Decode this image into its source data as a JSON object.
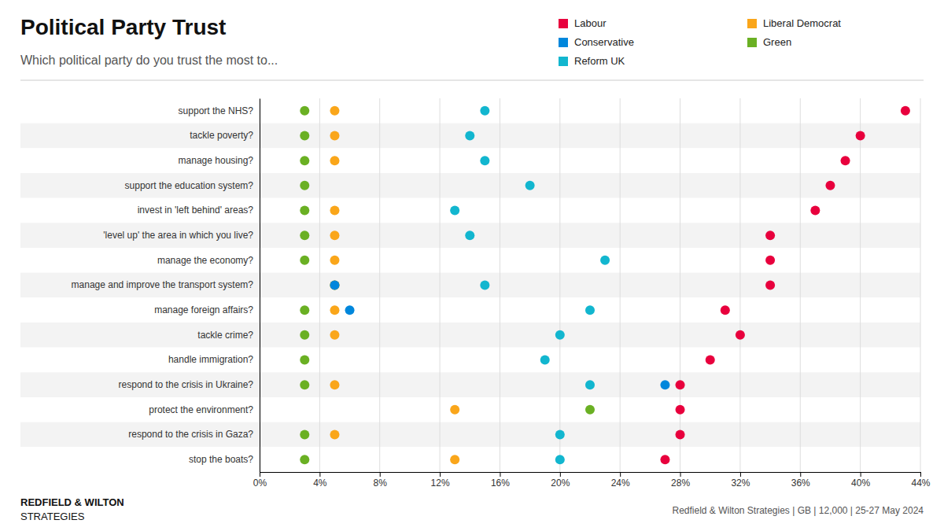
{
  "chart_data": {
    "type": "dot",
    "title": "Political Party Trust",
    "subtitle": "Which political party do you trust the most to...",
    "annotations": [
      "REDFIELD & WILTON",
      "STRATEGIES",
      "Redfield & Wilton Strategies | GB | 12,000 | 25-27 May 2024"
    ],
    "categories": [
      "support the NHS?",
      "tackle poverty?",
      "manage housing?",
      "support the education system?",
      "invest in 'left behind' areas?",
      "'level up' the area in which you live?",
      "manage the economy?",
      "manage and improve the transport system?",
      "manage foreign affairs?",
      "tackle crime?",
      "handle immigration?",
      "respond to the crisis in Ukraine?",
      "protect the environment?",
      "respond to the crisis in Gaza?",
      "stop the boats?"
    ],
    "series": [
      {
        "name": "Green",
        "color": "#6AB023",
        "values": [
          3,
          3,
          3,
          3,
          3,
          3,
          3,
          5,
          3,
          3,
          3,
          3,
          22,
          3,
          3
        ]
      },
      {
        "name": "Liberal Democrat",
        "color": "#FAA61A",
        "values": [
          5,
          5,
          5,
          null,
          5,
          5,
          5,
          5,
          5,
          5,
          null,
          5,
          13,
          5,
          13
        ]
      },
      {
        "name": "Reform UK",
        "color": "#12B6CF",
        "values": [
          15,
          14,
          15,
          18,
          13,
          14,
          23,
          15,
          22,
          20,
          19,
          22,
          null,
          20,
          20
        ]
      },
      {
        "name": "Conservative",
        "color": "#0087DC",
        "values": [
          null,
          null,
          null,
          null,
          null,
          null,
          null,
          5,
          6,
          null,
          null,
          27,
          null,
          null,
          null
        ]
      },
      {
        "name": "Labour",
        "color": "#E8003D",
        "values": [
          43,
          40,
          39,
          38,
          37,
          34,
          34,
          34,
          31,
          32,
          30,
          28,
          28,
          28,
          27
        ]
      }
    ],
    "xlim": [
      0,
      44
    ],
    "xticks": [
      {
        "value": 0,
        "label": "0%"
      },
      {
        "value": 4,
        "label": "4%"
      },
      {
        "value": 8,
        "label": "8%"
      },
      {
        "value": 12,
        "label": "12%"
      },
      {
        "value": 16,
        "label": "16%"
      },
      {
        "value": 20,
        "label": "20%"
      },
      {
        "value": 24,
        "label": "24%"
      },
      {
        "value": 28,
        "label": "28%"
      },
      {
        "value": 32,
        "label": "32%"
      },
      {
        "value": 36,
        "label": "36%"
      },
      {
        "value": 40,
        "label": "40%"
      },
      {
        "value": 44,
        "label": "44%"
      }
    ],
    "grid": true,
    "legend": "top-right"
  }
}
